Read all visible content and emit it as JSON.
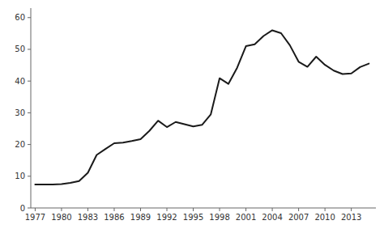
{
  "chart_data": {
    "type": "line",
    "x": [
      1977,
      1978,
      1979,
      1980,
      1981,
      1982,
      1983,
      1984,
      1985,
      1986,
      1987,
      1988,
      1989,
      1990,
      1991,
      1992,
      1993,
      1994,
      1995,
      1996,
      1997,
      1998,
      1999,
      2000,
      2001,
      2002,
      2003,
      2004,
      2005,
      2006,
      2007,
      2008,
      2009,
      2010,
      2011,
      2012,
      2013,
      2014,
      2015
    ],
    "values": [
      7.4,
      7.4,
      7.4,
      7.5,
      7.9,
      8.5,
      11.1,
      16.7,
      18.6,
      20.4,
      20.6,
      21.1,
      21.7,
      24.3,
      27.5,
      25.5,
      27.1,
      26.4,
      25.7,
      26.2,
      29.5,
      40.9,
      39.1,
      44.2,
      51.0,
      51.6,
      54.2,
      56.0,
      55.1,
      51.3,
      46.1,
      44.5,
      47.7,
      45.1,
      43.3,
      42.2,
      42.4,
      44.4,
      45.5
    ],
    "color": "#1a1a1a",
    "xlim": [
      1976.5,
      2015.8
    ],
    "ylim": [
      0,
      63
    ],
    "xticks": [
      1977,
      1980,
      1983,
      1986,
      1989,
      1992,
      1995,
      1998,
      2001,
      2004,
      2007,
      2010,
      2013
    ],
    "yticks": [
      0,
      10,
      20,
      30,
      40,
      50,
      60
    ],
    "grid": false
  }
}
